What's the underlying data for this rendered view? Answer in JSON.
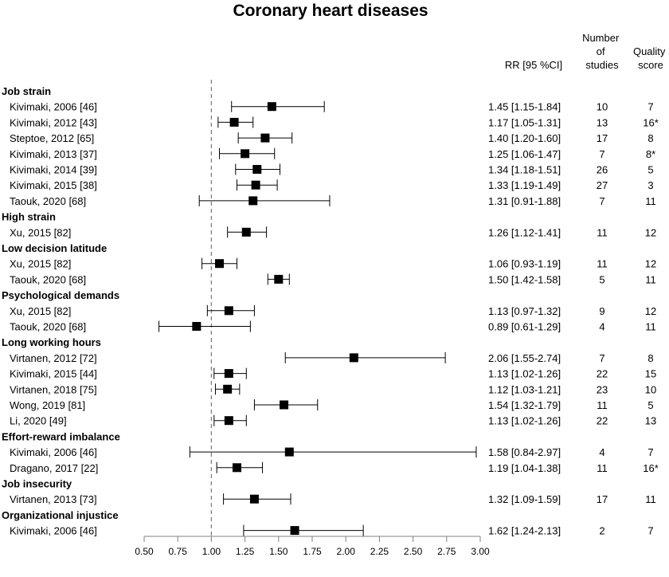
{
  "chart_data": {
    "type": "forest",
    "title": "Coronary heart diseases",
    "column_headers": {
      "rr": "RR [95 %CI]",
      "studies": [
        "Number",
        "of",
        "studies"
      ],
      "quality": [
        "Quality",
        "score"
      ]
    },
    "reference_line": 1.0,
    "xlim": [
      0.5,
      3.0
    ],
    "x_ticks": [
      "0.50",
      "0.75",
      "1.00",
      "1.25",
      "1.50",
      "1.75",
      "2.00",
      "2.25",
      "2.50",
      "2.75",
      "3.00"
    ],
    "rows": [
      {
        "kind": "group",
        "label": "Job strain"
      },
      {
        "kind": "study",
        "label": "Kivimaki, 2006 [46]",
        "rr": 1.45,
        "lo": 1.15,
        "hi": 1.84,
        "rr_text": "1.45 [1.15-1.84]",
        "n": "10",
        "q": "7"
      },
      {
        "kind": "study",
        "label": "Kivimaki, 2012 [43]",
        "rr": 1.17,
        "lo": 1.05,
        "hi": 1.31,
        "rr_text": "1.17 [1.05-1.31]",
        "n": "13",
        "q": "16*"
      },
      {
        "kind": "study",
        "label": "Steptoe, 2012 [65]",
        "rr": 1.4,
        "lo": 1.2,
        "hi": 1.6,
        "rr_text": "1.40 [1.20-1.60]",
        "n": "17",
        "q": "8"
      },
      {
        "kind": "study",
        "label": "Kivimaki, 2013 [37]",
        "rr": 1.25,
        "lo": 1.06,
        "hi": 1.47,
        "rr_text": "1.25 [1.06-1.47]",
        "n": "7",
        "q": "8*"
      },
      {
        "kind": "study",
        "label": "Kivimaki, 2014 [39]",
        "rr": 1.34,
        "lo": 1.18,
        "hi": 1.51,
        "rr_text": "1.34 [1.18-1.51]",
        "n": "26",
        "q": "5"
      },
      {
        "kind": "study",
        "label": "Kivimaki, 2015 [38]",
        "rr": 1.33,
        "lo": 1.19,
        "hi": 1.49,
        "rr_text": "1.33 [1.19-1.49]",
        "n": "27",
        "q": "3"
      },
      {
        "kind": "study",
        "label": "Taouk, 2020 [68]",
        "rr": 1.31,
        "lo": 0.91,
        "hi": 1.88,
        "rr_text": "1.31 [0.91-1.88]",
        "n": "7",
        "q": "11"
      },
      {
        "kind": "group",
        "label": "High strain"
      },
      {
        "kind": "study",
        "label": "Xu, 2015 [82]",
        "rr": 1.26,
        "lo": 1.12,
        "hi": 1.41,
        "rr_text": "1.26 [1.12-1.41]",
        "n": "11",
        "q": "12"
      },
      {
        "kind": "group",
        "label": "Low decision latitude"
      },
      {
        "kind": "study",
        "label": "Xu, 2015 [82]",
        "rr": 1.06,
        "lo": 0.93,
        "hi": 1.19,
        "rr_text": "1.06 [0.93-1.19]",
        "n": "11",
        "q": "12"
      },
      {
        "kind": "study",
        "label": "Taouk, 2020 [68]",
        "rr": 1.5,
        "lo": 1.42,
        "hi": 1.58,
        "rr_text": "1.50 [1.42-1.58]",
        "n": "5",
        "q": "11"
      },
      {
        "kind": "group",
        "label": "Psychological demands"
      },
      {
        "kind": "study",
        "label": "Xu, 2015 [82]",
        "rr": 1.13,
        "lo": 0.97,
        "hi": 1.32,
        "rr_text": "1.13 [0.97-1.32]",
        "n": "9",
        "q": "12"
      },
      {
        "kind": "study",
        "label": "Taouk, 2020 [68]",
        "rr": 0.89,
        "lo": 0.61,
        "hi": 1.29,
        "rr_text": "0.89 [0.61-1.29]",
        "n": "4",
        "q": "11"
      },
      {
        "kind": "group",
        "label": "Long working hours"
      },
      {
        "kind": "study",
        "label": "Virtanen, 2012 [72]",
        "rr": 2.06,
        "lo": 1.55,
        "hi": 2.74,
        "rr_text": "2.06 [1.55-2.74]",
        "n": "7",
        "q": "8"
      },
      {
        "kind": "study",
        "label": "Kivimaki, 2015 [44]",
        "rr": 1.13,
        "lo": 1.02,
        "hi": 1.26,
        "rr_text": "1.13 [1.02-1.26]",
        "n": "22",
        "q": "15"
      },
      {
        "kind": "study",
        "label": "Virtanen, 2018 [75]",
        "rr": 1.12,
        "lo": 1.03,
        "hi": 1.21,
        "rr_text": "1.12 [1.03-1.21]",
        "n": "23",
        "q": "10"
      },
      {
        "kind": "study",
        "label": "Wong, 2019 [81]",
        "rr": 1.54,
        "lo": 1.32,
        "hi": 1.79,
        "rr_text": "1.54 [1.32-1.79]",
        "n": "11",
        "q": "5"
      },
      {
        "kind": "study",
        "label": "Li, 2020 [49]",
        "rr": 1.13,
        "lo": 1.02,
        "hi": 1.26,
        "rr_text": "1.13 [1.02-1.26]",
        "n": "22",
        "q": "13"
      },
      {
        "kind": "group",
        "label": "Effort-reward imbalance"
      },
      {
        "kind": "study",
        "label": "Kivimaki, 2006 [46]",
        "rr": 1.58,
        "lo": 0.84,
        "hi": 2.97,
        "rr_text": "1.58 [0.84-2.97]",
        "n": "4",
        "q": "7"
      },
      {
        "kind": "study",
        "label": "Dragano, 2017 [22]",
        "rr": 1.19,
        "lo": 1.04,
        "hi": 1.38,
        "rr_text": "1.19 [1.04-1.38]",
        "n": "11",
        "q": "16*"
      },
      {
        "kind": "group",
        "label": "Job insecurity"
      },
      {
        "kind": "study",
        "label": "Virtanen, 2013 [73]",
        "rr": 1.32,
        "lo": 1.09,
        "hi": 1.59,
        "rr_text": "1.32 [1.09-1.59]",
        "n": "17",
        "q": "11"
      },
      {
        "kind": "group",
        "label": "Organizational injustice"
      },
      {
        "kind": "study",
        "label": "Kivimaki, 2006 [46]",
        "rr": 1.62,
        "lo": 1.24,
        "hi": 2.13,
        "rr_text": "1.62 [1.24-2.13]",
        "n": "2",
        "q": "7"
      }
    ]
  }
}
